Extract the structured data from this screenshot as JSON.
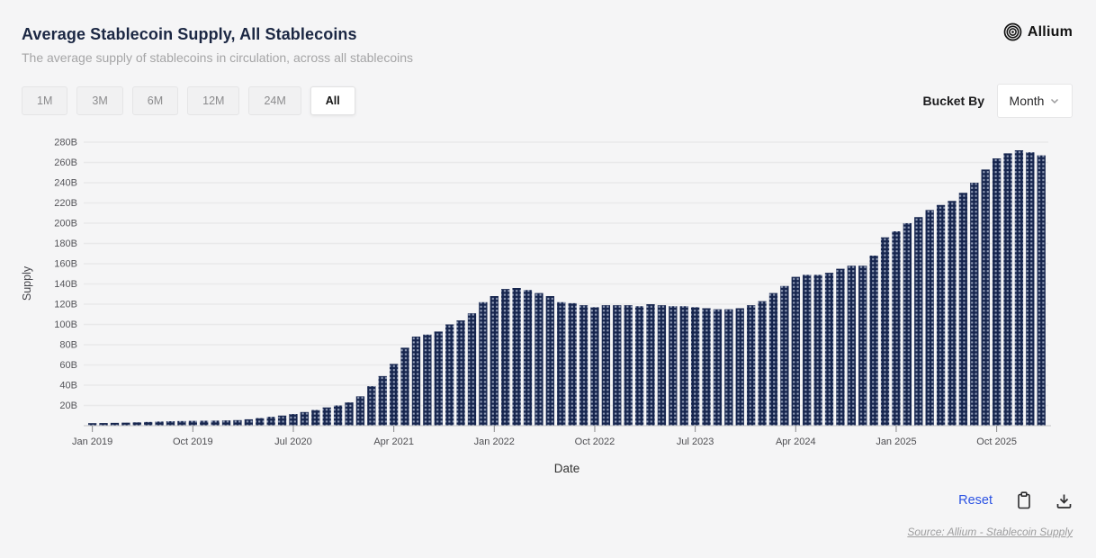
{
  "header": {
    "title": "Average Stablecoin Supply, All Stablecoins",
    "subtitle": "The average supply of stablecoins in circulation, across all stablecoins",
    "brand": "Allium"
  },
  "controls": {
    "ranges": [
      "1M",
      "3M",
      "6M",
      "12M",
      "24M",
      "All"
    ],
    "selected_range": "All",
    "bucket_by_label": "Bucket By",
    "bucket_value": "Month"
  },
  "chart_data": {
    "type": "bar",
    "title": "Average Stablecoin Supply, All Stablecoins",
    "xlabel": "Date",
    "ylabel": "Supply",
    "unit": "B",
    "ylim": [
      0,
      290
    ],
    "y_tick_step": 20,
    "y_tick_max": 280,
    "grid": true,
    "legend": "none",
    "bar_color": "#16254e",
    "bar_dot_color": "#98a3bd",
    "x_tick_labels": [
      "Jan 2019",
      "Oct 2019",
      "Jul 2020",
      "Apr 2021",
      "Jan 2022",
      "Oct 2022",
      "Jul 2023",
      "Apr 2024",
      "Jan 2025",
      "Oct 2025"
    ],
    "x_tick_indices": [
      0,
      9,
      18,
      27,
      36,
      45,
      54,
      63,
      72,
      81
    ],
    "categories": [
      "Jan 2019",
      "Feb 2019",
      "Mar 2019",
      "Apr 2019",
      "May 2019",
      "Jun 2019",
      "Jul 2019",
      "Aug 2019",
      "Sep 2019",
      "Oct 2019",
      "Nov 2019",
      "Dec 2019",
      "Jan 2020",
      "Feb 2020",
      "Mar 2020",
      "Apr 2020",
      "May 2020",
      "Jun 2020",
      "Jul 2020",
      "Aug 2020",
      "Sep 2020",
      "Oct 2020",
      "Nov 2020",
      "Dec 2020",
      "Jan 2021",
      "Feb 2021",
      "Mar 2021",
      "Apr 2021",
      "May 2021",
      "Jun 2021",
      "Jul 2021",
      "Aug 2021",
      "Sep 2021",
      "Oct 2021",
      "Nov 2021",
      "Dec 2021",
      "Jan 2022",
      "Feb 2022",
      "Mar 2022",
      "Apr 2022",
      "May 2022",
      "Jun 2022",
      "Jul 2022",
      "Aug 2022",
      "Sep 2022",
      "Oct 2022",
      "Nov 2022",
      "Dec 2022",
      "Jan 2023",
      "Feb 2023",
      "Mar 2023",
      "Apr 2023",
      "May 2023",
      "Jun 2023",
      "Jul 2023",
      "Aug 2023",
      "Sep 2023",
      "Oct 2023",
      "Nov 2023",
      "Dec 2023",
      "Jan 2024",
      "Feb 2024",
      "Mar 2024",
      "Apr 2024",
      "May 2024",
      "Jun 2024",
      "Jul 2024",
      "Aug 2024",
      "Sep 2024",
      "Oct 2024",
      "Nov 2024",
      "Dec 2024",
      "Jan 2025",
      "Feb 2025",
      "Mar 2025",
      "Apr 2025",
      "May 2025",
      "Jun 2025",
      "Jul 2025",
      "Aug 2025",
      "Sep 2025",
      "Oct 2025",
      "Nov 2025",
      "Dec 2025",
      "Jan 2026",
      "Feb 2026"
    ],
    "values": [
      2.5,
      2.6,
      2.8,
      3.0,
      3.3,
      3.7,
      4.1,
      4.4,
      4.6,
      4.8,
      4.9,
      5.0,
      5.2,
      5.5,
      6.3,
      7.5,
      8.8,
      10,
      11.5,
      13.5,
      15.5,
      18,
      20,
      23,
      29,
      39,
      49,
      61,
      77,
      88,
      90,
      93,
      100,
      104,
      111,
      122,
      128,
      135,
      136,
      134,
      131,
      128,
      122,
      121,
      119,
      117,
      119,
      119,
      119,
      118,
      120,
      119,
      118,
      118,
      117,
      116,
      115,
      115,
      116,
      119,
      123,
      131,
      138,
      147,
      149,
      149,
      151,
      155,
      158,
      158,
      168,
      186,
      192,
      200,
      206,
      213,
      218,
      222,
      230,
      240,
      253,
      264,
      269,
      272,
      270,
      267
    ]
  },
  "footer": {
    "reset_label": "Reset",
    "source": "Source: Allium - Stablecoin Supply"
  },
  "colors": {
    "background": "#f5f5f6",
    "title": "#1b2743",
    "subtitle": "#a5a5a6",
    "bar": "#16254e",
    "bar_dot": "#98a3bd",
    "gridline": "#e9e9ea",
    "axis_text": "#55555a",
    "reset_link": "#2b52e3"
  },
  "icons": {
    "brand_logo": "allium-rings-icon",
    "dropdown": "chevron-down-icon",
    "copy": "clipboard-icon",
    "download": "download-icon"
  }
}
